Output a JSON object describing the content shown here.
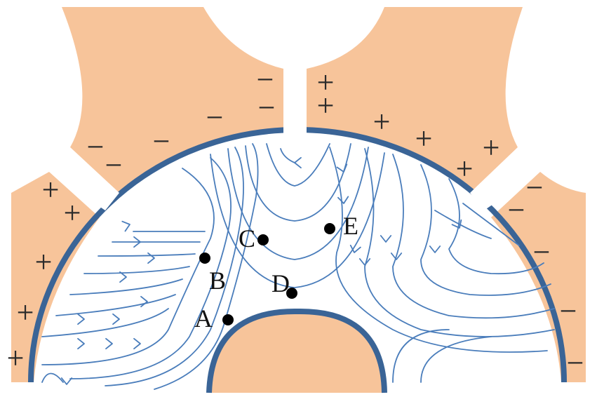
{
  "colors": {
    "electrode": "#f7c49a",
    "ring": "#3a6496",
    "field_line": "#4a7dbb",
    "sign": "#2b2b2b",
    "background": "#ffffff"
  },
  "points": [
    {
      "id": "A",
      "label": "A"
    },
    {
      "id": "B",
      "label": "B"
    },
    {
      "id": "C",
      "label": "C"
    },
    {
      "id": "D",
      "label": "D"
    },
    {
      "id": "E",
      "label": "E"
    }
  ],
  "charges": {
    "positive": "+",
    "negative": "−"
  }
}
